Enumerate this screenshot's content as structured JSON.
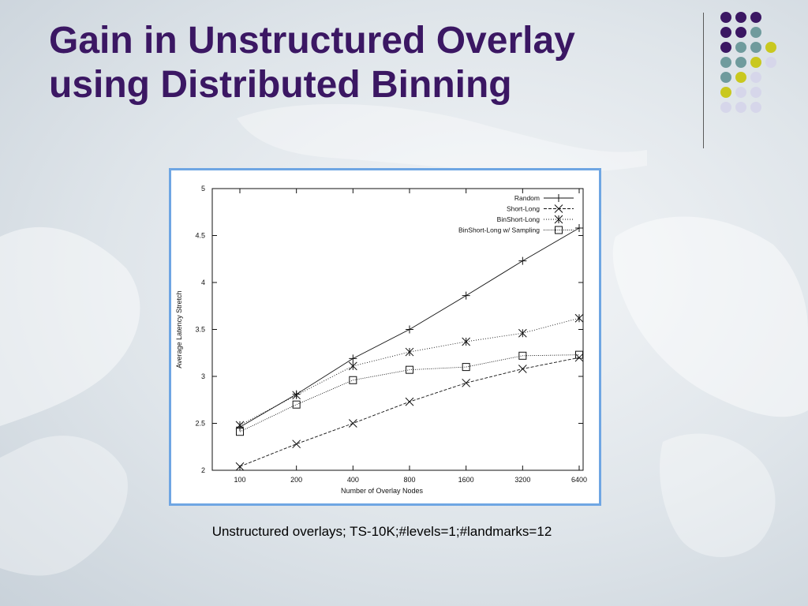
{
  "slide": {
    "title_line1": "Gain in Unstructured Overlay",
    "title_line2": "using Distributed Binning",
    "caption": "Unstructured overlays; TS-10K;#levels=1;#landmarks=12"
  },
  "colors": {
    "title": "#3b1763",
    "frame": "#6fa6e3",
    "dot_purple": "#3b1763",
    "dot_teal": "#6f9b9d",
    "dot_yellow": "#c9c81f",
    "dot_lavender": "#d6d6ea"
  },
  "decor": {
    "dot_grid": [
      [
        "purple",
        "purple",
        "purple",
        "none"
      ],
      [
        "purple",
        "purple",
        "teal",
        "none"
      ],
      [
        "purple",
        "teal",
        "teal",
        "yellow"
      ],
      [
        "teal",
        "teal",
        "yellow",
        "lavender"
      ],
      [
        "teal",
        "yellow",
        "lavender",
        "none"
      ],
      [
        "yellow",
        "lavender",
        "lavender",
        "none"
      ],
      [
        "lavender",
        "lavender",
        "lavender",
        "none"
      ]
    ]
  },
  "chart_data": {
    "type": "line",
    "categories": [
      "100",
      "200",
      "400",
      "800",
      "1600",
      "3200",
      "6400"
    ],
    "xlabel": "Number of Overlay Nodes",
    "ylabel": "Average Latency Stretch",
    "ylim": [
      2,
      5
    ],
    "yticks": [
      2,
      2.5,
      3,
      3.5,
      4,
      4.5,
      5
    ],
    "yticklabels": [
      "2",
      "2.5",
      "3",
      "3.5",
      "4",
      "4.5",
      "5"
    ],
    "grid": false,
    "legend_position": "top-right",
    "series": [
      {
        "name": "Random",
        "marker": "plus",
        "dash": "solid",
        "values": [
          2.46,
          2.81,
          3.19,
          3.5,
          3.86,
          4.23,
          4.58
        ]
      },
      {
        "name": "Short-Long",
        "marker": "x",
        "dash": "dashed",
        "values": [
          2.04,
          2.28,
          2.5,
          2.73,
          2.93,
          3.08,
          3.2
        ]
      },
      {
        "name": "BinShort-Long",
        "marker": "asterisk",
        "dash": "dotted",
        "values": [
          2.48,
          2.8,
          3.11,
          3.26,
          3.37,
          3.46,
          3.62
        ]
      },
      {
        "name": "BinShort-Long w/ Sampling",
        "marker": "square",
        "dash": "dashdot",
        "values": [
          2.41,
          2.7,
          2.96,
          3.07,
          3.1,
          3.22,
          3.23
        ]
      }
    ]
  }
}
